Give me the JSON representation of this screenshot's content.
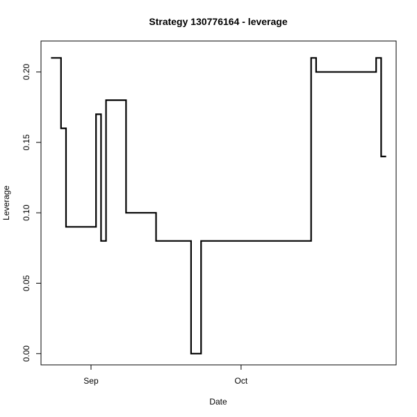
{
  "chart_data": {
    "type": "line",
    "step": true,
    "title": "Strategy 130776164 - leverage",
    "xlabel": "Date",
    "ylabel": "Leverage",
    "xlim": [
      "2013-08-22",
      "2013-11-01"
    ],
    "ylim": [
      -0.008,
      0.222
    ],
    "x_ticks": [
      {
        "date": "2013-09-01",
        "label": "Sep"
      },
      {
        "date": "2013-10-01",
        "label": "Oct"
      }
    ],
    "y_ticks": [
      {
        "value": 0.0,
        "label": "0.00"
      },
      {
        "value": 0.05,
        "label": "0.05"
      },
      {
        "value": 0.1,
        "label": "0.10"
      },
      {
        "value": 0.15,
        "label": "0.15"
      },
      {
        "value": 0.2,
        "label": "0.20"
      }
    ],
    "grid": false,
    "legend": "none",
    "series": [
      {
        "color": "#000000",
        "points": [
          {
            "x": "2013-08-24",
            "y": 0.21
          },
          {
            "x": "2013-08-26",
            "y": 0.16
          },
          {
            "x": "2013-08-27",
            "y": 0.09
          },
          {
            "x": "2013-09-02",
            "y": 0.17
          },
          {
            "x": "2013-09-03",
            "y": 0.08
          },
          {
            "x": "2013-09-04",
            "y": 0.18
          },
          {
            "x": "2013-09-08",
            "y": 0.1
          },
          {
            "x": "2013-09-14",
            "y": 0.08
          },
          {
            "x": "2013-09-21",
            "y": 0.0
          },
          {
            "x": "2013-09-23",
            "y": 0.08
          },
          {
            "x": "2013-10-15",
            "y": 0.21
          },
          {
            "x": "2013-10-16",
            "y": 0.2
          },
          {
            "x": "2013-10-28",
            "y": 0.21
          },
          {
            "x": "2013-10-29",
            "y": 0.14
          }
        ]
      }
    ]
  }
}
